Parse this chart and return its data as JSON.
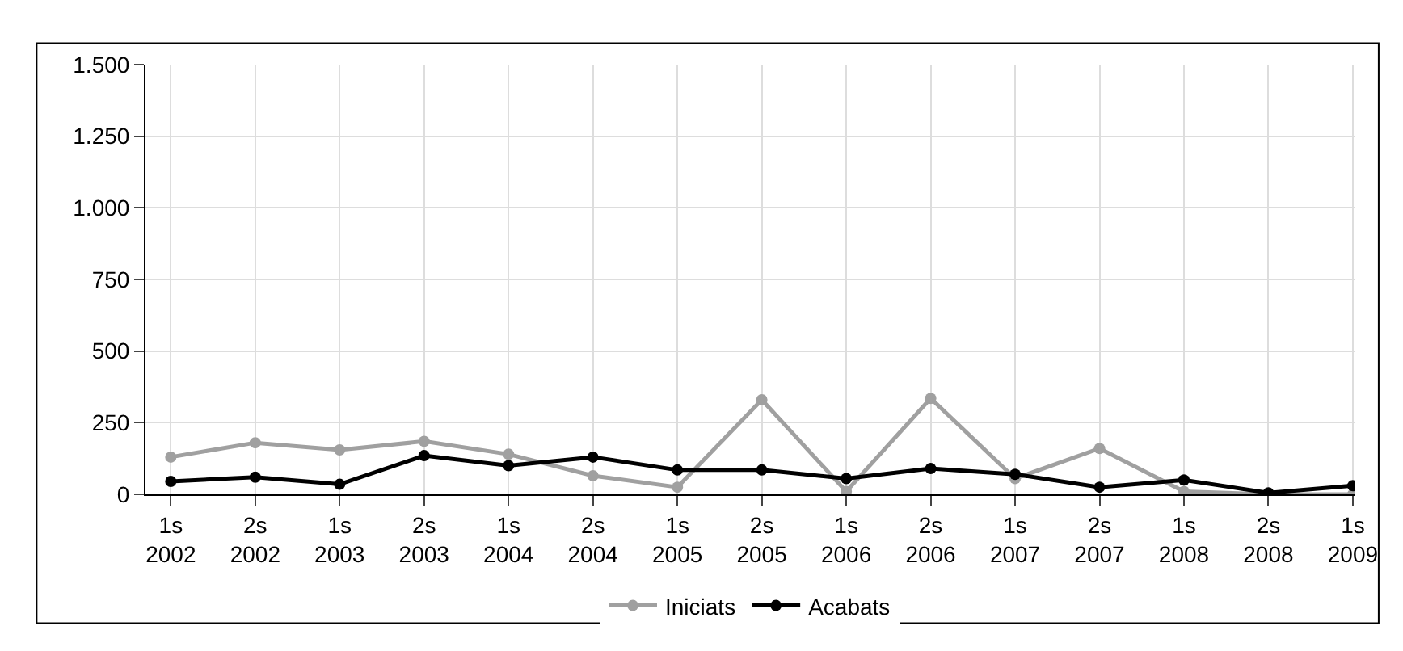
{
  "chart_data": {
    "type": "line",
    "categories": [
      "1s\n2002",
      "2s\n2002",
      "1s\n2003",
      "2s\n2003",
      "1s\n2004",
      "2s\n2004",
      "1s\n2005",
      "2s\n2005",
      "1s\n2006",
      "2s\n2006",
      "1s\n2007",
      "2s\n2007",
      "1s\n2008",
      "2s\n2008",
      "1s\n2009"
    ],
    "series": [
      {
        "name": "Iniciats",
        "color": "#a0a0a0",
        "values": [
          130,
          180,
          155,
          185,
          140,
          65,
          25,
          330,
          10,
          335,
          55,
          160,
          10,
          0,
          0
        ]
      },
      {
        "name": "Acabats",
        "color": "#000000",
        "values": [
          45,
          60,
          35,
          135,
          100,
          130,
          85,
          85,
          55,
          90,
          70,
          25,
          50,
          5,
          30
        ]
      }
    ],
    "ylim": [
      0,
      1500
    ],
    "yticks": [
      0,
      250,
      500,
      750,
      {
        "value": 1000,
        "label": "1.000"
      },
      {
        "value": 1250,
        "label": "1.250"
      },
      {
        "value": 1500,
        "label": "1.500"
      }
    ],
    "grid": true,
    "legend": "bottom",
    "marker": "circle",
    "line_style": "solid"
  }
}
